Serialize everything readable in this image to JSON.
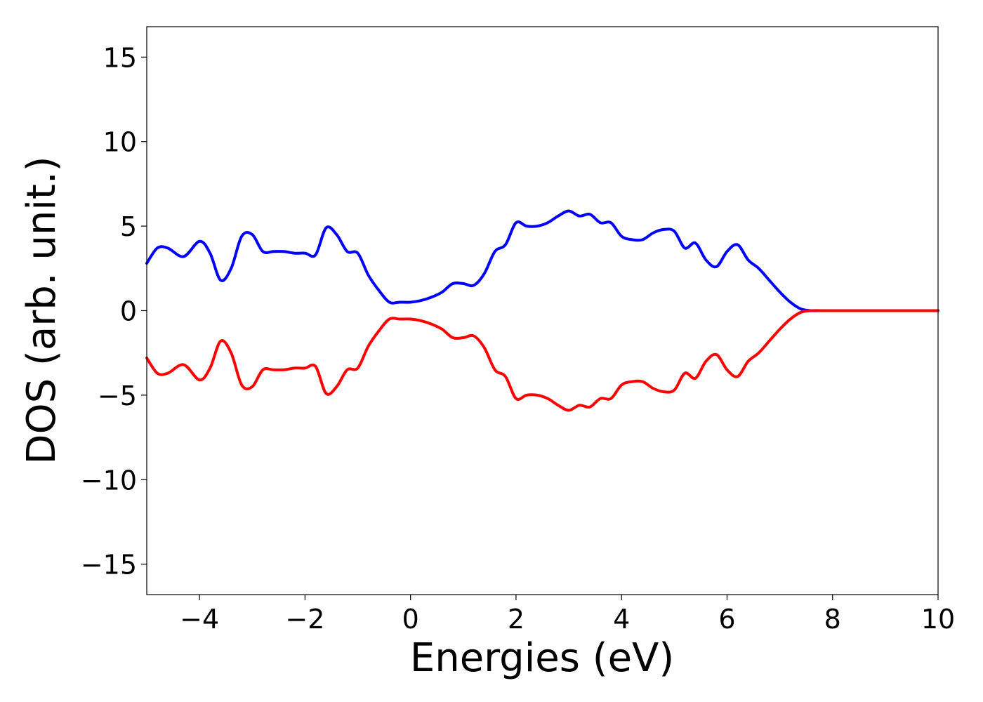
{
  "chart_data": {
    "type": "line",
    "title": "",
    "xlabel": "Energies (eV)",
    "ylabel": "DOS (arb. unit.)",
    "xlim": [
      -5,
      10
    ],
    "ylim": [
      -16.8,
      16.8
    ],
    "x_ticks": [
      "−4",
      "−2",
      "0",
      "2",
      "4",
      "6",
      "8",
      "10"
    ],
    "x_tick_values": [
      -4,
      -2,
      0,
      2,
      4,
      6,
      8,
      10
    ],
    "y_ticks": [
      "15",
      "10",
      "5",
      "0",
      "−5",
      "−10",
      "−15"
    ],
    "y_tick_values": [
      15,
      10,
      5,
      0,
      -5,
      -10,
      -15
    ],
    "grid": false,
    "legend": "none",
    "x": [
      -5.0,
      -4.8,
      -4.6,
      -4.3,
      -4.0,
      -3.8,
      -3.6,
      -3.4,
      -3.2,
      -3.0,
      -2.8,
      -2.6,
      -2.4,
      -2.2,
      -2.0,
      -1.8,
      -1.6,
      -1.4,
      -1.2,
      -1.0,
      -0.8,
      -0.6,
      -0.4,
      -0.2,
      0.0,
      0.2,
      0.4,
      0.6,
      0.8,
      1.0,
      1.2,
      1.4,
      1.6,
      1.8,
      2.0,
      2.2,
      2.4,
      2.6,
      2.8,
      3.0,
      3.2,
      3.4,
      3.6,
      3.8,
      4.0,
      4.2,
      4.4,
      4.6,
      4.8,
      5.0,
      5.2,
      5.4,
      5.6,
      5.8,
      6.0,
      6.2,
      6.4,
      6.6,
      6.8,
      7.0,
      7.2,
      7.4,
      7.6,
      7.8,
      8.0,
      8.2,
      8.4,
      8.6,
      9.0,
      9.5,
      10.0
    ],
    "series": [
      {
        "color": "#0000ff",
        "values": [
          2.8,
          3.7,
          3.7,
          3.2,
          4.1,
          3.4,
          1.8,
          2.5,
          4.4,
          4.5,
          3.5,
          3.5,
          3.5,
          3.4,
          3.4,
          3.3,
          4.9,
          4.5,
          3.5,
          3.4,
          2.1,
          1.2,
          0.5,
          0.5,
          0.5,
          0.6,
          0.8,
          1.1,
          1.6,
          1.6,
          1.5,
          2.2,
          3.5,
          3.9,
          5.2,
          5.0,
          5.0,
          5.2,
          5.6,
          5.9,
          5.6,
          5.7,
          5.2,
          5.2,
          4.4,
          4.2,
          4.2,
          4.6,
          4.8,
          4.7,
          3.7,
          4.0,
          3.0,
          2.6,
          3.5,
          3.9,
          3.0,
          2.5,
          1.8,
          1.1,
          0.5,
          0.1,
          0.0,
          0.0,
          0.0,
          0.0,
          0.0,
          0.0,
          0.0,
          0.0,
          0.0
        ]
      },
      {
        "color": "#ff0000",
        "values": [
          -2.8,
          -3.7,
          -3.7,
          -3.2,
          -4.1,
          -3.4,
          -1.8,
          -2.5,
          -4.4,
          -4.5,
          -3.5,
          -3.5,
          -3.5,
          -3.4,
          -3.4,
          -3.3,
          -4.9,
          -4.5,
          -3.5,
          -3.4,
          -2.1,
          -1.2,
          -0.5,
          -0.5,
          -0.5,
          -0.6,
          -0.8,
          -1.1,
          -1.6,
          -1.6,
          -1.5,
          -2.2,
          -3.5,
          -3.9,
          -5.2,
          -5.0,
          -5.0,
          -5.2,
          -5.6,
          -5.9,
          -5.6,
          -5.7,
          -5.2,
          -5.2,
          -4.4,
          -4.2,
          -4.2,
          -4.6,
          -4.8,
          -4.7,
          -3.7,
          -4.0,
          -3.0,
          -2.6,
          -3.5,
          -3.9,
          -3.0,
          -2.5,
          -1.8,
          -1.1,
          -0.5,
          -0.1,
          0.0,
          0.0,
          0.0,
          0.0,
          0.0,
          0.0,
          0.0,
          0.0,
          0.0
        ]
      }
    ]
  }
}
